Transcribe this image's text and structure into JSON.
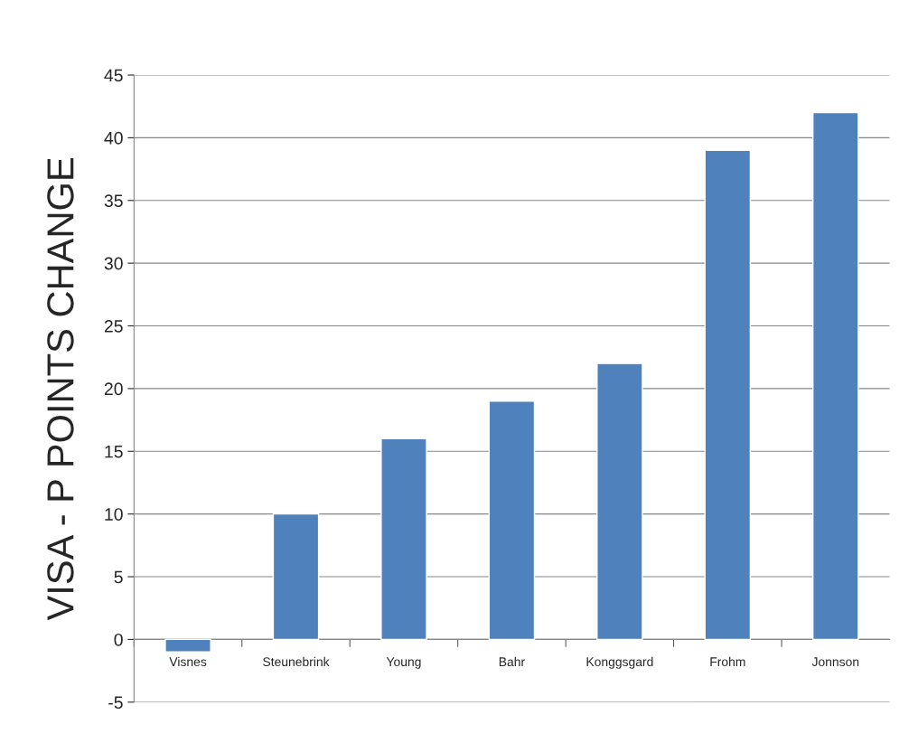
{
  "chart_data": {
    "type": "bar",
    "ylabel": "VISA - P POINTS CHANGE",
    "categories": [
      "Visnes",
      "Steunebrink",
      "Young",
      "Bahr",
      "Konggsgard",
      "Frohm",
      "Jonnson"
    ],
    "values": [
      -1,
      10,
      16,
      19,
      22,
      39,
      42
    ],
    "color": "#4f81bd",
    "ylim": [
      -5,
      45
    ],
    "yticks": [
      -5,
      0,
      5,
      10,
      15,
      20,
      25,
      30,
      35,
      40,
      45
    ],
    "grid": "y"
  }
}
